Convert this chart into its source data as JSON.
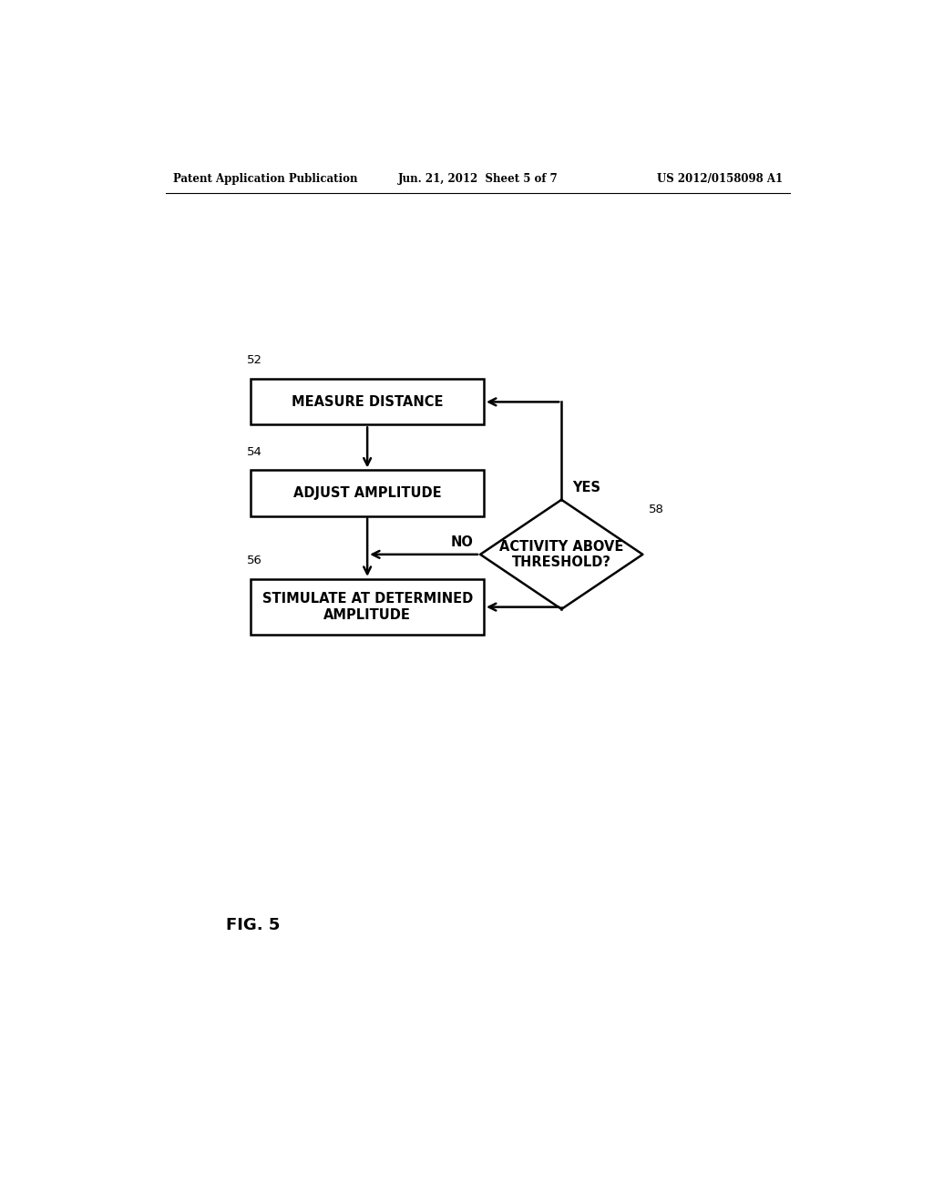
{
  "bg_color": "#ffffff",
  "text_color": "#000000",
  "header_left": "Patent Application Publication",
  "header_center": "Jun. 21, 2012  Sheet 5 of 7",
  "header_right": "US 2012/0158098 A1",
  "fig_label": "FIG. 5",
  "box1_label": "MEASURE DISTANCE",
  "box1_num": "52",
  "box2_label": "ADJUST AMPLITUDE",
  "box2_num": "54",
  "box3_label": "STIMULATE AT DETERMINED\nAMPLITUDE",
  "box3_num": "56",
  "diamond_label": "ACTIVITY ABOVE\nTHRESHOLD?",
  "diamond_num": "58",
  "yes_label": "YES",
  "no_label": "NO",
  "font_size_box": 10.5,
  "font_size_header": 8.5,
  "font_size_num": 9.5,
  "font_size_fig": 13
}
